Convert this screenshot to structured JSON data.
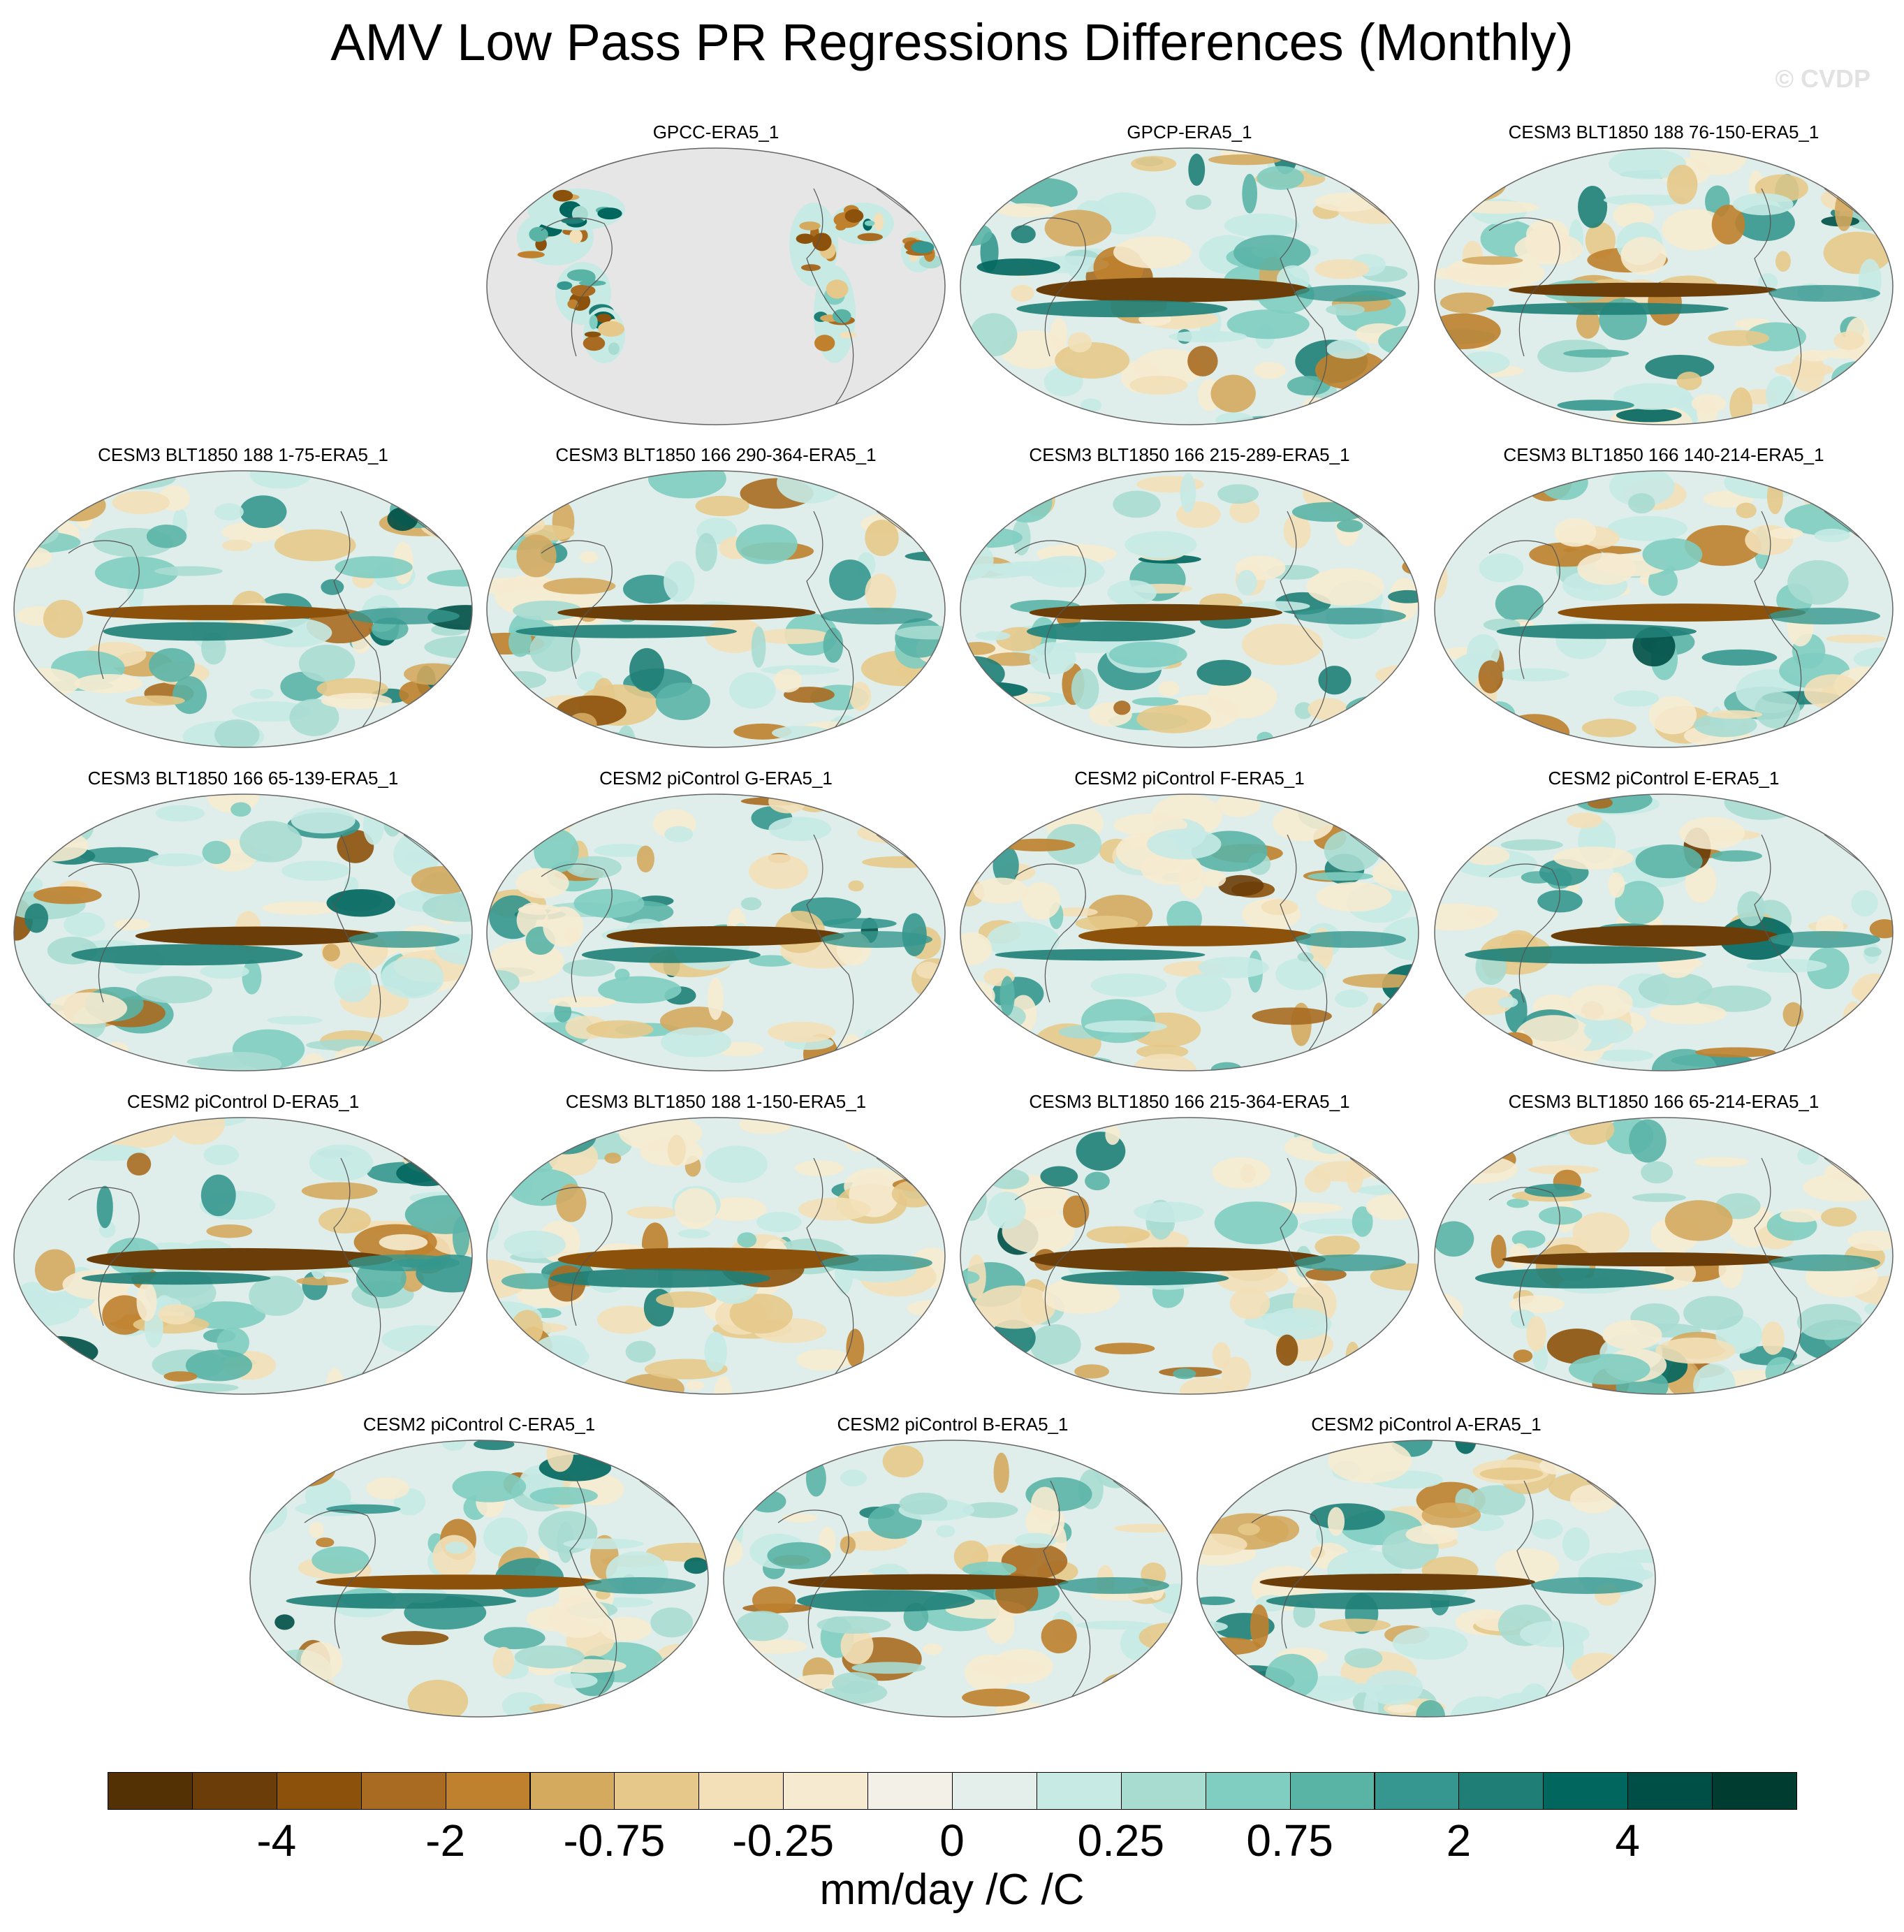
{
  "title": "AMV Low Pass PR Regressions Differences (Monthly)",
  "watermark": "© CVDP",
  "panels": [
    {
      "label": "GPCC-ERA5_1",
      "land_only": true
    },
    {
      "label": "GPCP-ERA5_1"
    },
    {
      "label": "CESM3 BLT1850 188 76-150-ERA5_1"
    },
    {
      "label": "CESM3 BLT1850 188 1-75-ERA5_1"
    },
    {
      "label": "CESM3 BLT1850 166 290-364-ERA5_1"
    },
    {
      "label": "CESM3 BLT1850 166 215-289-ERA5_1"
    },
    {
      "label": "CESM3 BLT1850 166 140-214-ERA5_1"
    },
    {
      "label": "CESM3 BLT1850 166 65-139-ERA5_1"
    },
    {
      "label": "CESM2 piControl G-ERA5_1"
    },
    {
      "label": "CESM2 piControl F-ERA5_1"
    },
    {
      "label": "CESM2 piControl E-ERA5_1"
    },
    {
      "label": "CESM2 piControl D-ERA5_1"
    },
    {
      "label": "CESM3 BLT1850 188 1-150-ERA5_1"
    },
    {
      "label": "CESM3 BLT1850 166 215-364-ERA5_1"
    },
    {
      "label": "CESM3 BLT1850 166 65-214-ERA5_1"
    },
    {
      "label": "CESM2 piControl C-ERA5_1"
    },
    {
      "label": "CESM2 piControl B-ERA5_1"
    },
    {
      "label": "CESM2 piControl A-ERA5_1"
    }
  ],
  "colorbar": {
    "colors": [
      "#543005",
      "#6b3d09",
      "#8c510a",
      "#a86b21",
      "#bf812d",
      "#d4aa5f",
      "#e6c98a",
      "#f3e0b8",
      "#f6ebd0",
      "#f3f0e8",
      "#e4eeeb",
      "#c7eae5",
      "#a8dcd1",
      "#80cdc1",
      "#5ab4a6",
      "#35978f",
      "#1f7f77",
      "#01665e",
      "#004f46",
      "#003c30"
    ],
    "labels": [
      "-4",
      "-2",
      "-0.75",
      "-0.25",
      "0",
      "0.25",
      "0.75",
      "2",
      "4"
    ],
    "units": "mm/day /C /C"
  }
}
